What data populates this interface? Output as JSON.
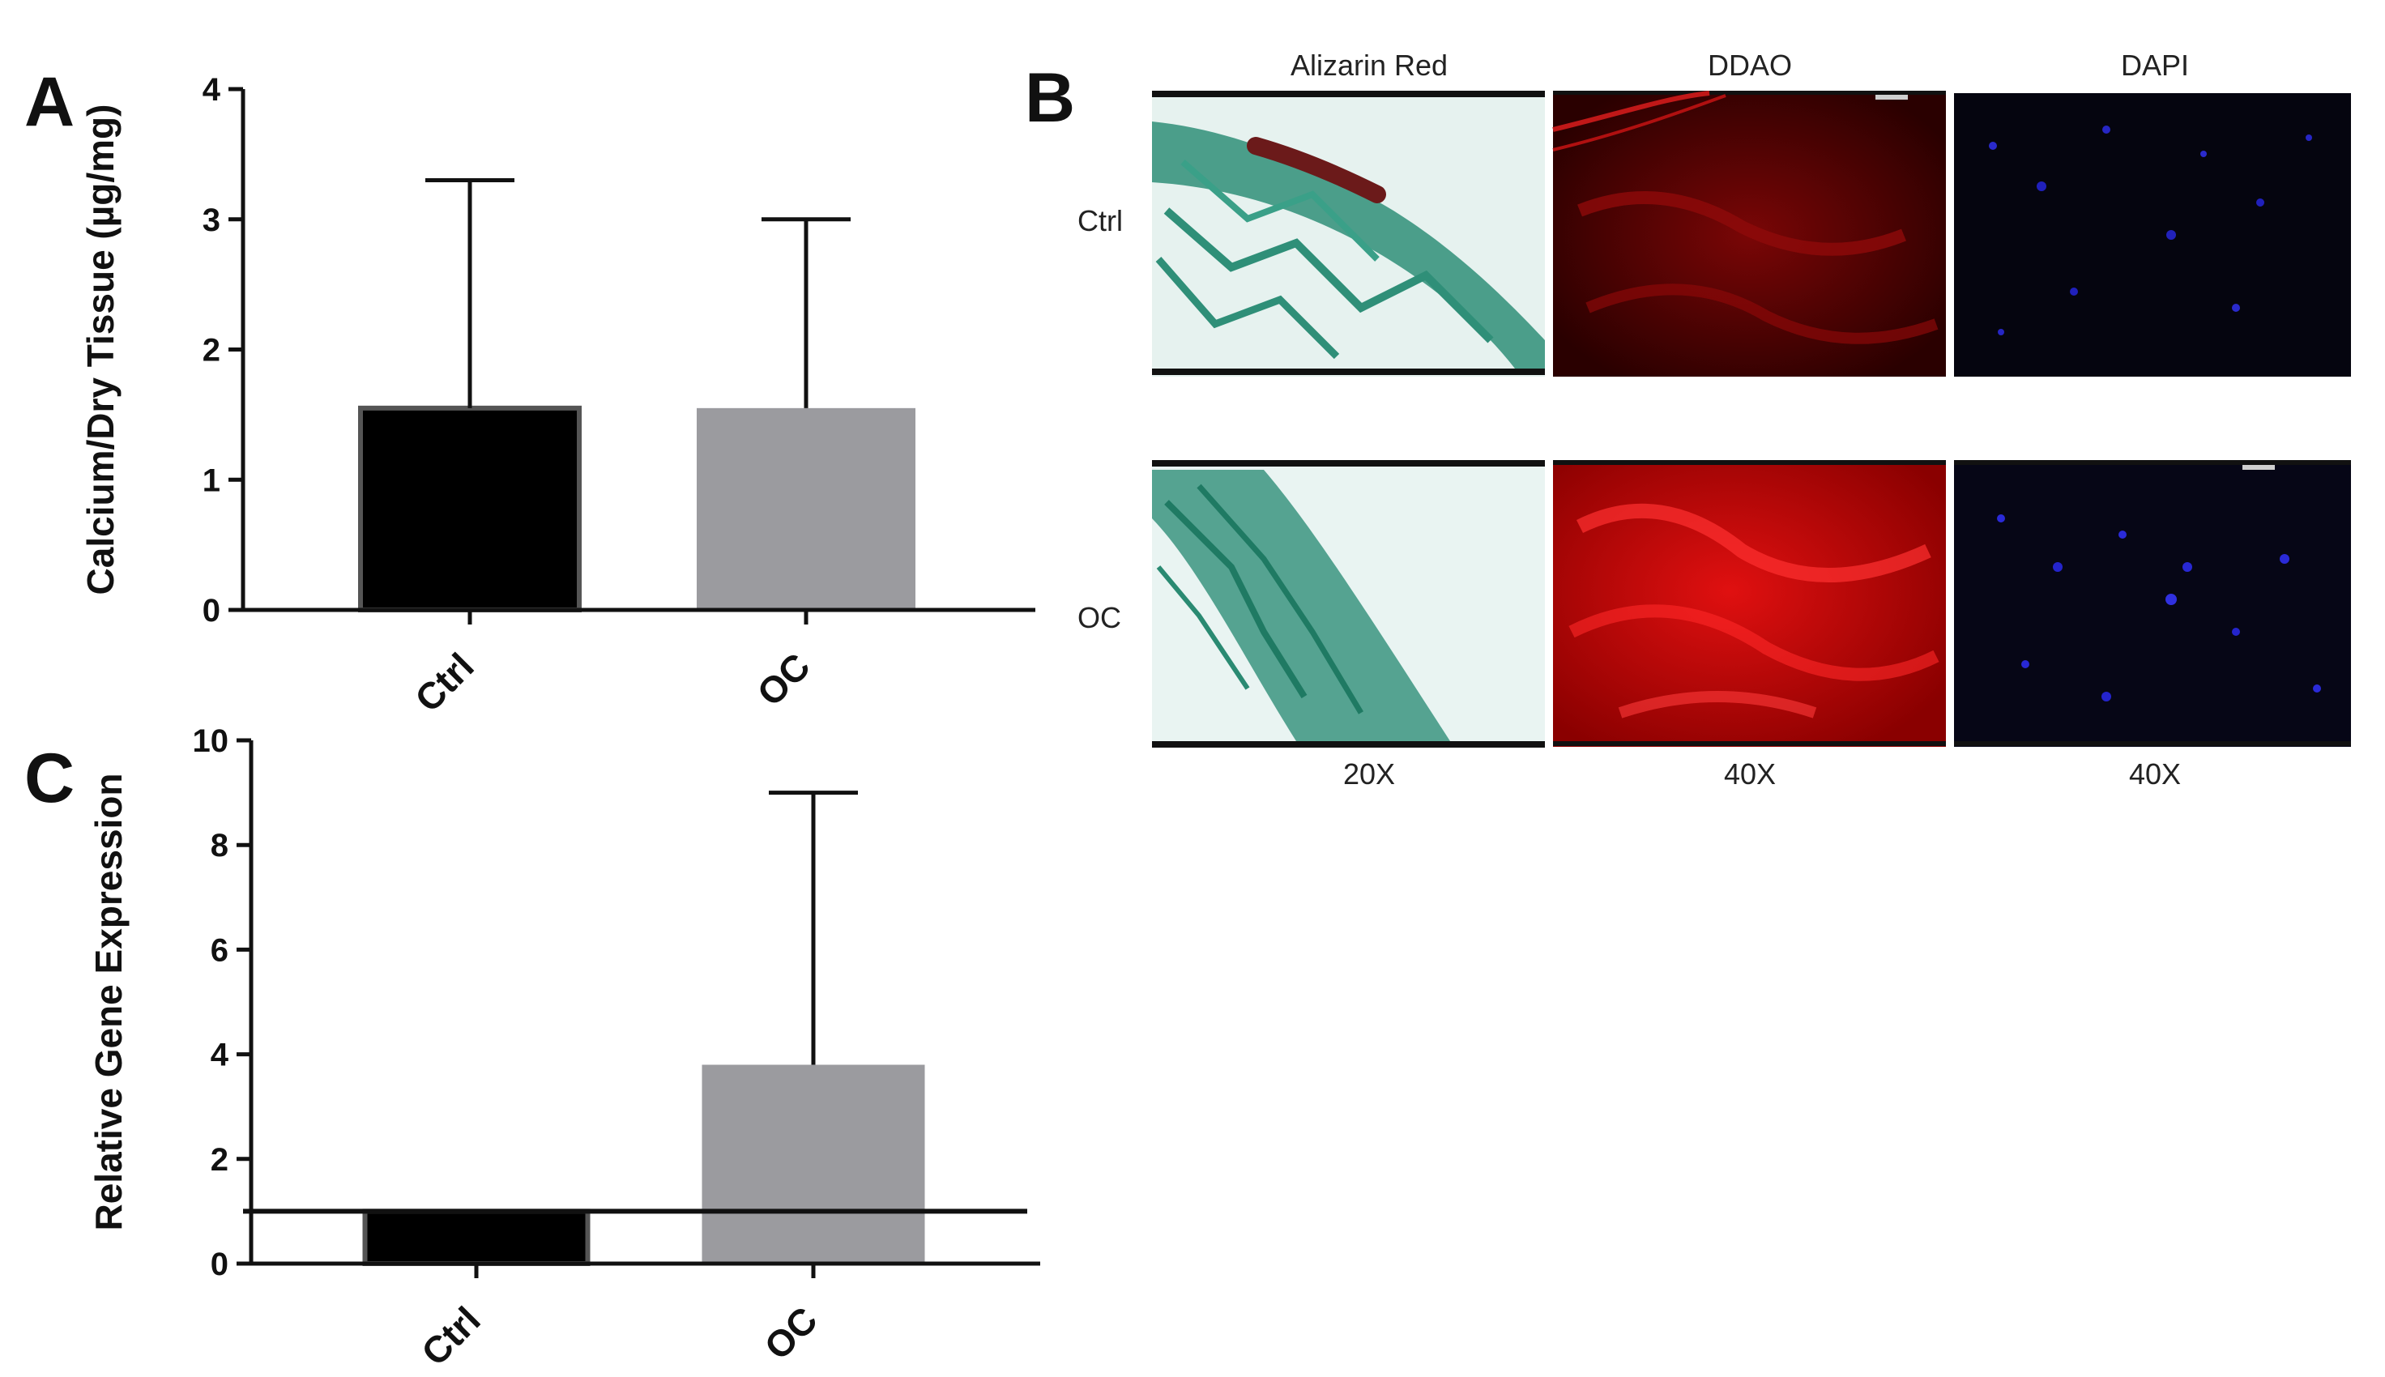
{
  "panels": {
    "a": "A",
    "b": "B",
    "c": "C"
  },
  "chart_data": [
    {
      "type": "bar",
      "panel": "A",
      "categories": [
        "Ctrl",
        "OC"
      ],
      "values": [
        1.55,
        1.55
      ],
      "error_upper": [
        3.3,
        3.0
      ],
      "ylabel": "Calcium/Dry Tissue (µg/mg)",
      "xlabel": "",
      "ylim": [
        0,
        4
      ],
      "yticks": [
        0,
        1,
        2,
        3,
        4
      ],
      "colors": [
        "#000000",
        "#9b9b9f"
      ],
      "grid": false
    },
    {
      "type": "bar",
      "panel": "C",
      "categories": [
        "Ctrl",
        "OC"
      ],
      "values": [
        1.0,
        3.8
      ],
      "error_upper": [
        null,
        9.0
      ],
      "ylabel": "Relative Gene Expression",
      "xlabel": "",
      "ylim": [
        0,
        10
      ],
      "yticks": [
        0,
        2,
        4,
        6,
        8,
        10
      ],
      "reference_line": 1.0,
      "colors": [
        "#000000",
        "#9b9b9f"
      ],
      "grid": false
    }
  ],
  "micrographs": {
    "columns": [
      "Alizarin Red",
      "DDAO",
      "DAPI"
    ],
    "rows": [
      "Ctrl",
      "OC"
    ],
    "magnifications": [
      "20X",
      "40X",
      "40X"
    ]
  }
}
